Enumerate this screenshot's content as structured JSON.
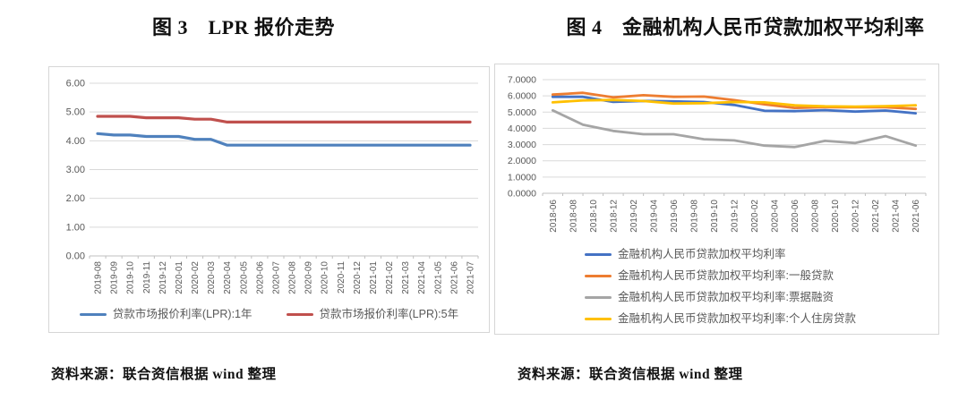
{
  "figures": [
    {
      "title": "图 3　LPR 报价走势",
      "source": "资料来源：联合资信根据 wind 整理",
      "chart_data": {
        "type": "line",
        "title": "图 3 LPR 报价走势",
        "grid": true,
        "legend_position": "bottom-center",
        "ylim": [
          0,
          6
        ],
        "y_tick_labels": [
          "0.00",
          "1.00",
          "2.00",
          "3.00",
          "4.00",
          "5.00",
          "6.00"
        ],
        "x_labels": [
          "2019-08",
          "2019-09",
          "2019-10",
          "2019-11",
          "2019-12",
          "2020-01",
          "2020-02",
          "2020-03",
          "2020-04",
          "2020-05",
          "2020-06",
          "2020-07",
          "2020-08",
          "2020-09",
          "2020-10",
          "2020-11",
          "2020-12",
          "2021-01",
          "2021-02",
          "2021-03",
          "2021-04",
          "2021-05",
          "2021-06",
          "2021-07"
        ],
        "data_x": [
          "2019-08",
          "2019-09",
          "2019-10",
          "2019-11",
          "2019-12",
          "2020-01",
          "2020-02",
          "2020-03",
          "2020-04",
          "2020-05",
          "2020-06",
          "2020-07",
          "2020-08",
          "2020-09",
          "2020-10",
          "2020-11",
          "2020-12",
          "2021-01",
          "2021-02",
          "2021-03",
          "2021-04",
          "2021-05",
          "2021-06",
          "2021-07"
        ],
        "series": [
          {
            "name": "贷款市场报价利率(LPR):1年",
            "color": "#4F81BD",
            "values": [
              4.25,
              4.2,
              4.2,
              4.15,
              4.15,
              4.15,
              4.05,
              4.05,
              3.85,
              3.85,
              3.85,
              3.85,
              3.85,
              3.85,
              3.85,
              3.85,
              3.85,
              3.85,
              3.85,
              3.85,
              3.85,
              3.85,
              3.85,
              3.85
            ]
          },
          {
            "name": "贷款市场报价利率(LPR):5年",
            "color": "#C0504D",
            "values": [
              4.85,
              4.85,
              4.85,
              4.8,
              4.8,
              4.8,
              4.75,
              4.75,
              4.65,
              4.65,
              4.65,
              4.65,
              4.65,
              4.65,
              4.65,
              4.65,
              4.65,
              4.65,
              4.65,
              4.65,
              4.65,
              4.65,
              4.65,
              4.65
            ]
          }
        ]
      }
    },
    {
      "title": "图 4　金融机构人民币贷款加权平均利率",
      "source": "资料来源：联合资信根据 wind 整理",
      "chart_data": {
        "type": "line",
        "title": "图 4 金融机构人民币贷款加权平均利率",
        "grid": true,
        "legend_position": "bottom-left",
        "ylim": [
          0,
          7
        ],
        "y_tick_labels": [
          "0.0000",
          "1.0000",
          "2.0000",
          "3.0000",
          "4.0000",
          "5.0000",
          "6.0000",
          "7.0000"
        ],
        "x_labels": [
          "2018-06",
          "2018-08",
          "2018-10",
          "2018-12",
          "2019-02",
          "2019-04",
          "2019-06",
          "2019-08",
          "2019-10",
          "2019-12",
          "2020-02",
          "2020-04",
          "2020-06",
          "2020-08",
          "2020-10",
          "2020-12",
          "2021-02",
          "2021-04",
          "2021-06"
        ],
        "data_x": [
          "2018-06",
          "2018-09",
          "2018-12",
          "2019-03",
          "2019-06",
          "2019-09",
          "2019-12",
          "2020-03",
          "2020-06",
          "2020-09",
          "2020-12",
          "2021-03",
          "2021-06"
        ],
        "series": [
          {
            "name": "金融机构人民币贷款加权平均利率",
            "color": "#4472C4",
            "values": [
              5.94,
              5.94,
              5.63,
              5.69,
              5.66,
              5.62,
              5.44,
              5.08,
              5.06,
              5.12,
              5.03,
              5.1,
              4.93
            ]
          },
          {
            "name": "金融机构人民币贷款加权平均利率:一般贷款",
            "color": "#ED7D31",
            "values": [
              6.08,
              6.19,
              5.91,
              6.04,
              5.94,
              5.96,
              5.74,
              5.48,
              5.26,
              5.31,
              5.3,
              5.3,
              5.2
            ]
          },
          {
            "name": "金融机构人民币贷款加权平均利率:票据融资",
            "color": "#A5A5A5",
            "values": [
              5.11,
              4.22,
              3.84,
              3.64,
              3.64,
              3.33,
              3.26,
              2.94,
              2.85,
              3.23,
              3.1,
              3.52,
              2.94
            ]
          },
          {
            "name": "金融机构人民币贷款加权平均利率:个人住房贷款",
            "color": "#FFC000",
            "values": [
              5.6,
              5.72,
              5.75,
              5.68,
              5.53,
              5.55,
              5.62,
              5.6,
              5.42,
              5.36,
              5.34,
              5.37,
              5.42
            ]
          }
        ]
      }
    }
  ]
}
